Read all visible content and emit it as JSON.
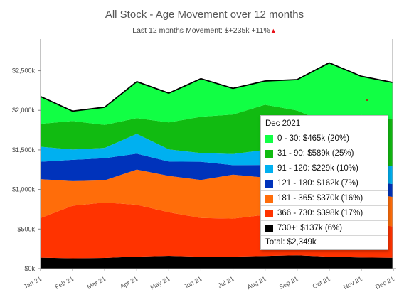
{
  "chart_data": {
    "type": "area",
    "stacked": true,
    "title": "All Stock - Age Movement over 12 months",
    "subtitle": "Last 12 months Movement: $+235k +11%",
    "subtitle_icon": "red-up-triangle-icon",
    "xlabel": "",
    "ylabel": "",
    "categories": [
      "Jan 21",
      "Feb 21",
      "Mar 21",
      "Apr 21",
      "May 21",
      "Jun 21",
      "Jul 21",
      "Aug 21",
      "Sep 21",
      "Oct 21",
      "Nov 21",
      "Dec 21"
    ],
    "y_ticks": [
      "$0k",
      "$500k",
      "$1,000k",
      "$1,500k",
      "$2,000k",
      "$2,500k"
    ],
    "ylim": [
      0,
      2900
    ],
    "grid": false,
    "series": [
      {
        "name": "730+",
        "color": "#000000",
        "values": [
          138,
          130,
          135,
          152,
          162,
          150,
          152,
          160,
          168,
          150,
          140,
          137
        ]
      },
      {
        "name": "366 - 730",
        "color": "#ff3300",
        "values": [
          502,
          665,
          700,
          655,
          550,
          490,
          480,
          520,
          430,
          400,
          420,
          398
        ]
      },
      {
        "name": "181 - 365",
        "color": "#ff6d0a",
        "values": [
          490,
          310,
          280,
          445,
          460,
          480,
          555,
          470,
          470,
          450,
          410,
          370
        ]
      },
      {
        "name": "121 - 180",
        "color": "#0033bb",
        "values": [
          220,
          270,
          280,
          200,
          180,
          230,
          120,
          160,
          190,
          170,
          150,
          162
        ]
      },
      {
        "name": "91 - 120",
        "color": "#00b0f0",
        "values": [
          190,
          130,
          130,
          250,
          155,
          110,
          140,
          190,
          140,
          180,
          210,
          229
        ]
      },
      {
        "name": "31 - 90",
        "color": "#11bb11",
        "values": [
          290,
          360,
          290,
          200,
          340,
          460,
          500,
          570,
          600,
          480,
          610,
          589
        ]
      },
      {
        "name": "0 - 30",
        "color": "#11ff44",
        "values": [
          345,
          125,
          225,
          460,
          370,
          480,
          330,
          300,
          390,
          770,
          490,
          465
        ]
      }
    ],
    "total_line": {
      "color": "#000000",
      "values": [
        2175,
        1990,
        2040,
        2362,
        2217,
        2400,
        2277,
        2370,
        2388,
        2600,
        2430,
        2350
      ]
    },
    "tooltip": {
      "header": "Dec 2021",
      "rows": [
        {
          "color": "#11ff44",
          "label": "0 - 30: $465k (20%)"
        },
        {
          "color": "#11bb11",
          "label": "31 - 90: $589k (25%)"
        },
        {
          "color": "#00b0f0",
          "label": "91 - 120: $229k (10%)"
        },
        {
          "color": "#0033bb",
          "label": "121 - 180: $162k (7%)"
        },
        {
          "color": "#ff6d0a",
          "label": "181 - 365: $370k (16%)"
        },
        {
          "color": "#ff3300",
          "label": "366 - 730: $398k (17%)"
        },
        {
          "color": "#000000",
          "label": "730+: $137k (6%)"
        }
      ],
      "total": "Total: $2,349k"
    }
  }
}
